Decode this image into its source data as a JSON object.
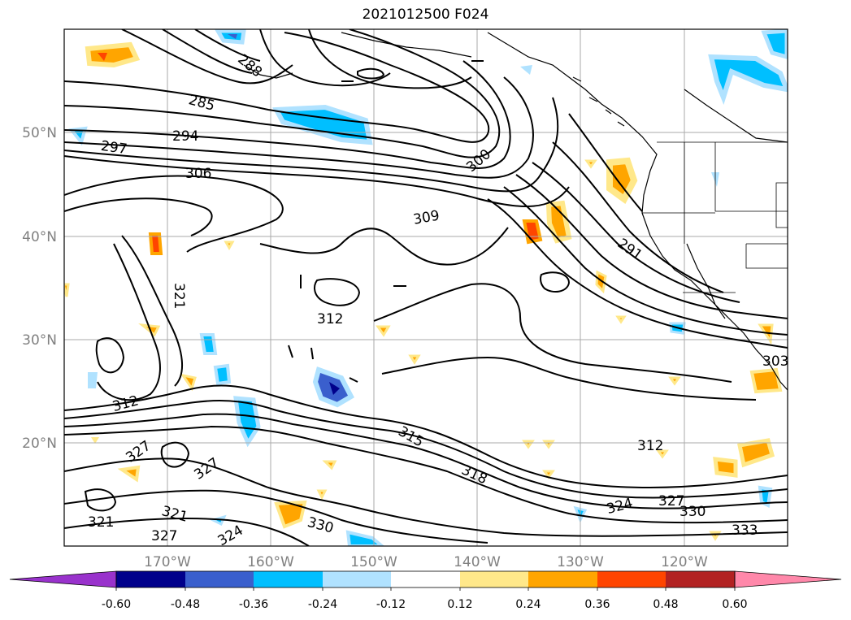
{
  "title": "2021012500 F024",
  "map": {
    "lon_ticks": [
      "170°W",
      "160°W",
      "150°W",
      "140°W",
      "130°W",
      "120°W"
    ],
    "lat_ticks": [
      "50°N",
      "40°N",
      "30°N",
      "20°N"
    ],
    "contour_labels": [
      "285",
      "288",
      "294",
      "297",
      "306",
      "300",
      "309",
      "291",
      "312",
      "321",
      "312",
      "327",
      "327",
      "321",
      "315",
      "318",
      "312",
      "324",
      "327",
      "330",
      "333",
      "330",
      "321",
      "327",
      "324",
      "303"
    ]
  },
  "colorbar": {
    "ticks": [
      "-0.60",
      "-0.48",
      "-0.36",
      "-0.24",
      "-0.12",
      "0.12",
      "0.24",
      "0.36",
      "0.48",
      "0.60"
    ],
    "colors": [
      "#9932cc",
      "#00008b",
      "#3a5fcd",
      "#00bfff",
      "#b0e2ff",
      "#ffffff",
      "#ffe88a",
      "#ffa500",
      "#ff4500",
      "#b22222",
      "#ff88aa"
    ]
  }
}
